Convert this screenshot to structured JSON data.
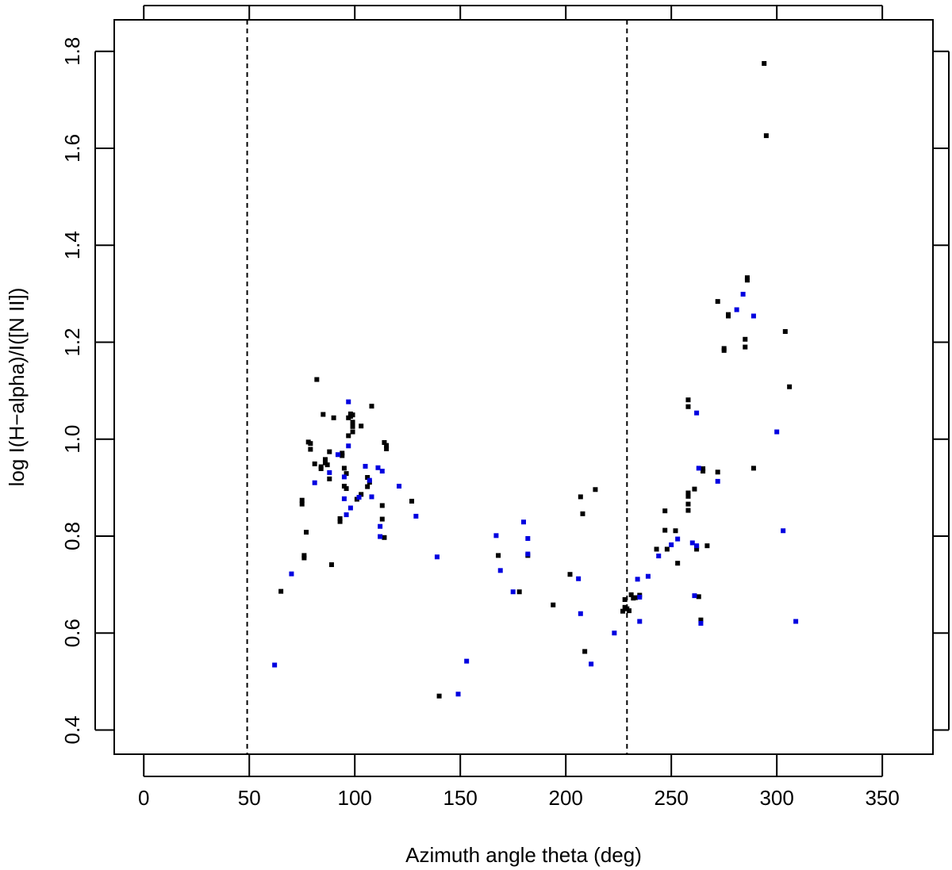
{
  "chart_data": {
    "type": "scatter",
    "title": "",
    "xlabel": "Azimuth angle theta (deg)",
    "ylabel": "log I(H−alpha)/I([N II])",
    "xlim": [
      -14,
      374
    ],
    "ylim": [
      0.35,
      1.865
    ],
    "x_ticks": [
      0,
      50,
      100,
      150,
      200,
      250,
      300,
      350
    ],
    "x_tick_labels": [
      "0",
      "50",
      "100",
      "150",
      "200",
      "250",
      "300",
      "350"
    ],
    "y_ticks": [
      0.4,
      0.6,
      0.8,
      1.0,
      1.2,
      1.4,
      1.6,
      1.8
    ],
    "y_tick_labels": [
      "0.4",
      "0.6",
      "0.8",
      "1.0",
      "1.2",
      "1.4",
      "1.6",
      "1.8"
    ],
    "grid": false,
    "reference_lines_x": [
      49,
      229
    ],
    "colors": {
      "black_series": "#000000",
      "blue_series": "#0000e0",
      "reference_line": "#000000"
    },
    "series": [
      {
        "color": "black",
        "points": [
          [
            65,
            0.686
          ],
          [
            75,
            0.874
          ],
          [
            75,
            0.866
          ],
          [
            76,
            0.755
          ],
          [
            76,
            0.76
          ],
          [
            77,
            0.808
          ],
          [
            78,
            0.994
          ],
          [
            79,
            0.991
          ],
          [
            79,
            0.979
          ],
          [
            81,
            0.949
          ],
          [
            82,
            1.123
          ],
          [
            84,
            0.943
          ],
          [
            84,
            0.939
          ],
          [
            85,
            1.051
          ],
          [
            86,
            0.958
          ],
          [
            86,
            0.951
          ],
          [
            87,
            0.947
          ],
          [
            88,
            0.974
          ],
          [
            88,
            0.918
          ],
          [
            89,
            0.741
          ],
          [
            90,
            1.044
          ],
          [
            93,
            0.836
          ],
          [
            93,
            0.83
          ],
          [
            94,
            0.971
          ],
          [
            94,
            0.966
          ],
          [
            95,
            0.94
          ],
          [
            95,
            0.903
          ],
          [
            96,
            0.898
          ],
          [
            96,
            0.929
          ],
          [
            97,
            1.007
          ],
          [
            97,
            1.044
          ],
          [
            98,
            1.052
          ],
          [
            98,
            1.047
          ],
          [
            99,
            1.035
          ],
          [
            99,
            1.026
          ],
          [
            99,
            1.015
          ],
          [
            99,
            1.05
          ],
          [
            101,
            0.876
          ],
          [
            103,
            1.027
          ],
          [
            103,
            0.886
          ],
          [
            106,
            0.921
          ],
          [
            106,
            0.902
          ],
          [
            107,
            0.911
          ],
          [
            108,
            1.068
          ],
          [
            113,
            0.863
          ],
          [
            113,
            0.835
          ],
          [
            114,
            0.993
          ],
          [
            114,
            0.797
          ],
          [
            115,
            0.987
          ],
          [
            115,
            0.98
          ],
          [
            127,
            0.872
          ],
          [
            140,
            0.47
          ],
          [
            168,
            0.76
          ],
          [
            178,
            0.685
          ],
          [
            182,
            0.76
          ],
          [
            194,
            0.658
          ],
          [
            202,
            0.721
          ],
          [
            207,
            0.881
          ],
          [
            208,
            0.846
          ],
          [
            209,
            0.562
          ],
          [
            214,
            0.896
          ],
          [
            227,
            0.645
          ],
          [
            228,
            0.653
          ],
          [
            228,
            0.669
          ],
          [
            229,
            0.65
          ],
          [
            230,
            0.646
          ],
          [
            231,
            0.679
          ],
          [
            232,
            0.672
          ],
          [
            233,
            0.673
          ],
          [
            235,
            0.678
          ],
          [
            243,
            0.773
          ],
          [
            247,
            0.852
          ],
          [
            247,
            0.812
          ],
          [
            248,
            0.773
          ],
          [
            252,
            0.811
          ],
          [
            253,
            0.744
          ],
          [
            258,
            1.081
          ],
          [
            258,
            1.067
          ],
          [
            258,
            0.889
          ],
          [
            258,
            0.882
          ],
          [
            258,
            0.866
          ],
          [
            258,
            0.853
          ],
          [
            261,
            0.897
          ],
          [
            262,
            0.778
          ],
          [
            262,
            0.773
          ],
          [
            263,
            0.675
          ],
          [
            264,
            0.627
          ],
          [
            265,
            0.939
          ],
          [
            265,
            0.934
          ],
          [
            267,
            0.78
          ],
          [
            272,
            1.284
          ],
          [
            272,
            0.932
          ],
          [
            275,
            1.187
          ],
          [
            275,
            1.183
          ],
          [
            277,
            1.257
          ],
          [
            277,
            1.254
          ],
          [
            285,
            1.206
          ],
          [
            285,
            1.19
          ],
          [
            286,
            1.333
          ],
          [
            286,
            1.328
          ],
          [
            289,
            0.94
          ],
          [
            294,
            1.775
          ],
          [
            295,
            1.626
          ],
          [
            304,
            1.222
          ],
          [
            306,
            1.108
          ]
        ]
      },
      {
        "color": "blue",
        "points": [
          [
            62,
            0.534
          ],
          [
            70,
            0.722
          ],
          [
            81,
            0.91
          ],
          [
            88,
            0.931
          ],
          [
            92,
            0.968
          ],
          [
            95,
            0.922
          ],
          [
            95,
            0.877
          ],
          [
            96,
            0.844
          ],
          [
            97,
            0.986
          ],
          [
            97,
            1.077
          ],
          [
            98,
            0.858
          ],
          [
            102,
            0.88
          ],
          [
            105,
            0.944
          ],
          [
            107,
            0.915
          ],
          [
            108,
            0.881
          ],
          [
            111,
            0.941
          ],
          [
            112,
            0.82
          ],
          [
            112,
            0.799
          ],
          [
            113,
            0.934
          ],
          [
            121,
            0.903
          ],
          [
            129,
            0.841
          ],
          [
            139,
            0.757
          ],
          [
            149,
            0.474
          ],
          [
            153,
            0.542
          ],
          [
            167,
            0.801
          ],
          [
            169,
            0.729
          ],
          [
            175,
            0.685
          ],
          [
            180,
            0.829
          ],
          [
            182,
            0.763
          ],
          [
            182,
            0.795
          ],
          [
            206,
            0.712
          ],
          [
            207,
            0.64
          ],
          [
            212,
            0.536
          ],
          [
            223,
            0.6
          ],
          [
            234,
            0.711
          ],
          [
            235,
            0.624
          ],
          [
            235,
            0.674
          ],
          [
            239,
            0.717
          ],
          [
            244,
            0.759
          ],
          [
            250,
            0.782
          ],
          [
            253,
            0.794
          ],
          [
            260,
            0.786
          ],
          [
            261,
            0.677
          ],
          [
            262,
            0.78
          ],
          [
            262,
            1.054
          ],
          [
            263,
            0.94
          ],
          [
            264,
            0.62
          ],
          [
            272,
            0.913
          ],
          [
            281,
            1.267
          ],
          [
            284,
            1.299
          ],
          [
            289,
            1.254
          ],
          [
            300,
            1.015
          ],
          [
            303,
            0.811
          ],
          [
            309,
            0.624
          ]
        ]
      }
    ]
  }
}
